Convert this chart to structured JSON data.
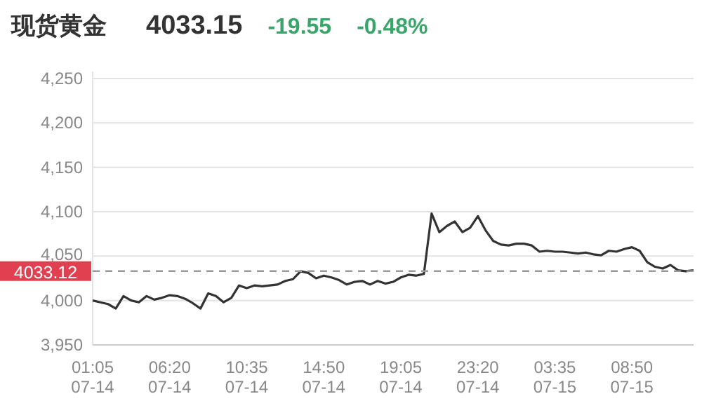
{
  "chart_data": {
    "type": "line",
    "title": "现货黄金",
    "annotations": [
      "4033.15",
      "-19.55",
      "-0.48%"
    ],
    "categories": [
      "01:05 07-14",
      null,
      null,
      null,
      null,
      null,
      null,
      null,
      null,
      null,
      "06:20 07-14",
      null,
      null,
      null,
      null,
      null,
      null,
      null,
      null,
      null,
      "10:35 07-14",
      null,
      null,
      null,
      null,
      null,
      null,
      null,
      null,
      null,
      "14:50 07-14",
      null,
      null,
      null,
      null,
      null,
      null,
      null,
      null,
      null,
      "19:05 07-14",
      null,
      null,
      null,
      null,
      null,
      null,
      null,
      null,
      null,
      "23:20 07-14",
      null,
      null,
      null,
      null,
      null,
      null,
      null,
      null,
      null,
      "03:35 07-15",
      null,
      null,
      null,
      null,
      null,
      null,
      null,
      null,
      null,
      "08:50 07-15",
      null,
      null,
      null,
      null,
      null,
      null,
      null,
      null
    ],
    "series": [
      {
        "color": "#333333",
        "values": [
          4000,
          3998,
          3996,
          3991,
          4005,
          4000,
          3998,
          4005,
          4001,
          4003,
          4006,
          4005,
          4002,
          3997,
          3991,
          4008,
          4005,
          3998,
          4003,
          4017,
          4014,
          4017,
          4016,
          4017,
          4018,
          4022,
          4024,
          4033,
          4031,
          4025,
          4028,
          4026,
          4023,
          4018,
          4021,
          4022,
          4018,
          4022,
          4019,
          4021,
          4026,
          4029,
          4028,
          4030,
          4098,
          4077,
          4084,
          4089,
          4077,
          4082,
          4095,
          4079,
          4067,
          4063,
          4062,
          4064,
          4064,
          4062,
          4055,
          4056,
          4055,
          4055,
          4054,
          4053,
          4054,
          4052,
          4051,
          4056,
          4055,
          4058,
          4060,
          4056,
          4043,
          4038,
          4036,
          4040,
          4034,
          4033,
          4034
        ]
      }
    ],
    "ylim": [
      3950,
      4250
    ],
    "yticks": [
      {
        "value": 3950,
        "label": "3,950"
      },
      {
        "value": 4000,
        "label": "4,000"
      },
      {
        "value": 4050,
        "label": "4,050"
      },
      {
        "value": 4100,
        "label": "4,100"
      },
      {
        "value": 4150,
        "label": "4,150"
      },
      {
        "value": 4200,
        "label": "4,200"
      },
      {
        "value": 4250,
        "label": "4,250"
      }
    ],
    "grid": "y",
    "ref_lines": [
      {
        "axis": "y",
        "value": 4033.12,
        "label": "4033.12",
        "color": "#999999",
        "line_style": "dashed"
      }
    ]
  }
}
